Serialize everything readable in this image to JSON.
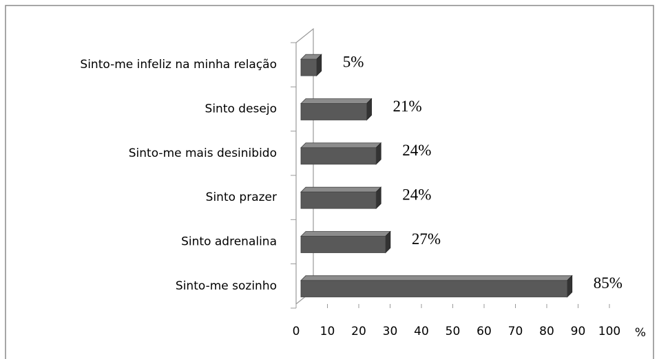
{
  "chart_data": {
    "type": "bar",
    "orientation": "horizontal",
    "categories": [
      "Sinto-me infeliz na minha relação",
      "Sinto desejo",
      "Sinto-me mais desinibido",
      "Sinto prazer",
      "Sinto adrenalina",
      "Sinto-me sozinho"
    ],
    "values": [
      5,
      21,
      24,
      24,
      27,
      85
    ],
    "value_labels": [
      "5%",
      "21%",
      "24%",
      "24%",
      "27%",
      "85%"
    ],
    "color": "#595959",
    "x_label": "%",
    "xlim": [
      0,
      100
    ],
    "xticks": [
      0,
      10,
      20,
      30,
      40,
      50,
      60,
      70,
      80,
      90,
      100
    ]
  }
}
